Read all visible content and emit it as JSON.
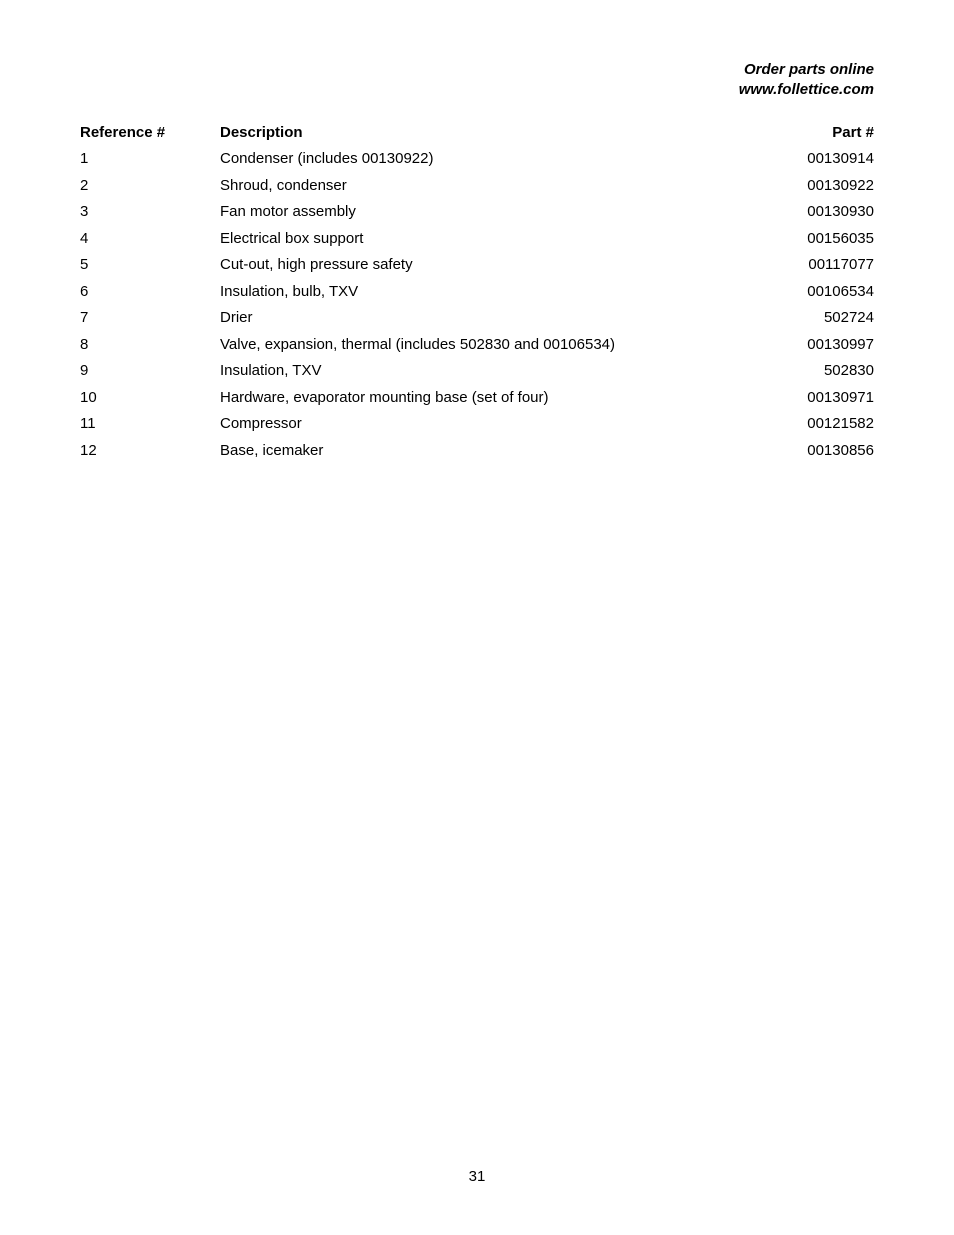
{
  "header": {
    "line1": "Order parts online",
    "line2": "www.follettice.com"
  },
  "table": {
    "columns": {
      "reference": "Reference #",
      "description": "Description",
      "part": "Part #"
    },
    "rows": [
      {
        "ref": "1",
        "desc": "Condenser (includes 00130922)",
        "part": "00130914"
      },
      {
        "ref": "2",
        "desc": "Shroud, condenser",
        "part": "00130922"
      },
      {
        "ref": "3",
        "desc": "Fan motor assembly",
        "part": "00130930"
      },
      {
        "ref": "4",
        "desc": "Electrical box support",
        "part": "00156035"
      },
      {
        "ref": "5",
        "desc": "Cut-out, high pressure safety",
        "part": "00117077"
      },
      {
        "ref": "6",
        "desc": "Insulation, bulb, TXV",
        "part": "00106534"
      },
      {
        "ref": "7",
        "desc": "Drier",
        "part": "502724"
      },
      {
        "ref": "8",
        "desc": "Valve, expansion, thermal (includes 502830 and 00106534)",
        "part": "00130997"
      },
      {
        "ref": "9",
        "desc": "Insulation, TXV",
        "part": "502830"
      },
      {
        "ref": "10",
        "desc": "Hardware, evaporator mounting base (set of four)",
        "part": "00130971"
      },
      {
        "ref": "11",
        "desc": "Compressor",
        "part": "00121582"
      },
      {
        "ref": "12",
        "desc": "Base, icemaker",
        "part": "00130856"
      }
    ]
  },
  "pageNumber": "31"
}
